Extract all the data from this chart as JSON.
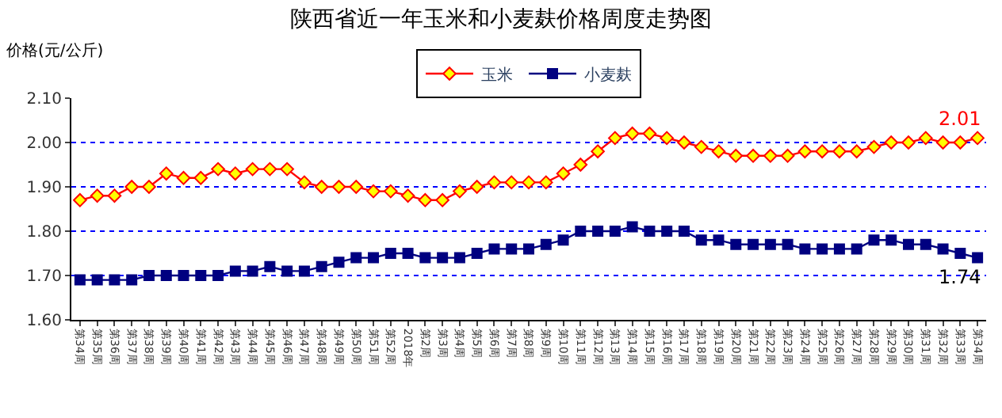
{
  "chart_data": {
    "type": "line",
    "title": "陕西省近一年玉米和小麦麸价格周度走势图",
    "ylabel": "价格(元/公斤)",
    "categories": [
      "第34周",
      "第35周",
      "第36周",
      "第37周",
      "第38周",
      "第39周",
      "第40周",
      "第41周",
      "第42周",
      "第43周",
      "第44周",
      "第45周",
      "第46周",
      "第47周",
      "第48周",
      "第49周",
      "第50周",
      "第51周",
      "第52周",
      "2018年",
      "第2周",
      "第3周",
      "第4周",
      "第5周",
      "第6周",
      "第7周",
      "第8周",
      "第9周",
      "第10周",
      "第11周",
      "第12周",
      "第13周",
      "第14周",
      "第15周",
      "第16周",
      "第17周",
      "第18周",
      "第19周",
      "第20周",
      "第21周",
      "第22周",
      "第23周",
      "第24周",
      "第25周",
      "第26周",
      "第27周",
      "第28周",
      "第29周",
      "第30周",
      "第31周",
      "第32周",
      "第33周",
      "第34周"
    ],
    "series": [
      {
        "name": "玉米",
        "color": "#ff0000",
        "marker": "diamond",
        "value_labels": [
          null,
          null,
          null,
          null,
          null,
          null,
          null,
          null,
          null,
          null,
          null,
          null,
          null,
          null,
          null,
          null,
          null,
          null,
          null,
          null,
          null,
          null,
          null,
          null,
          null,
          null,
          null,
          null,
          null,
          null,
          null,
          null,
          null,
          null,
          null,
          null,
          null,
          null,
          null,
          null,
          null,
          null,
          null,
          null,
          null,
          null,
          null,
          null,
          null,
          null,
          null,
          null,
          "2.01"
        ],
        "values": [
          1.87,
          1.88,
          1.88,
          1.9,
          1.9,
          1.93,
          1.92,
          1.92,
          1.94,
          1.93,
          1.94,
          1.94,
          1.94,
          1.91,
          1.9,
          1.9,
          1.9,
          1.89,
          1.89,
          1.88,
          1.87,
          1.87,
          1.89,
          1.9,
          1.91,
          1.91,
          1.91,
          1.91,
          1.93,
          1.95,
          1.98,
          2.01,
          2.02,
          2.02,
          2.01,
          2.0,
          1.99,
          1.98,
          1.97,
          1.97,
          1.97,
          1.97,
          1.98,
          1.98,
          1.98,
          1.98,
          1.99,
          2.0,
          2.0,
          2.01,
          2.0,
          2.0,
          2.01
        ]
      },
      {
        "name": "小麦麸",
        "color": "#000080",
        "marker": "square",
        "value_labels": [
          null,
          null,
          null,
          null,
          null,
          null,
          null,
          null,
          null,
          null,
          null,
          null,
          null,
          null,
          null,
          null,
          null,
          null,
          null,
          null,
          null,
          null,
          null,
          null,
          null,
          null,
          null,
          null,
          null,
          null,
          null,
          null,
          null,
          null,
          null,
          null,
          null,
          null,
          null,
          null,
          null,
          null,
          null,
          null,
          null,
          null,
          null,
          null,
          null,
          null,
          null,
          null,
          "1.74"
        ],
        "values": [
          1.69,
          1.69,
          1.69,
          1.69,
          1.7,
          1.7,
          1.7,
          1.7,
          1.7,
          1.71,
          1.71,
          1.72,
          1.71,
          1.71,
          1.72,
          1.73,
          1.74,
          1.74,
          1.75,
          1.75,
          1.74,
          1.74,
          1.74,
          1.75,
          1.76,
          1.76,
          1.76,
          1.77,
          1.78,
          1.8,
          1.8,
          1.8,
          1.81,
          1.8,
          1.8,
          1.8,
          1.78,
          1.78,
          1.77,
          1.77,
          1.77,
          1.77,
          1.76,
          1.76,
          1.76,
          1.76,
          1.78,
          1.78,
          1.77,
          1.77,
          1.76,
          1.75,
          1.74
        ]
      }
    ],
    "ylim": [
      1.6,
      2.1
    ],
    "yticks": [
      {
        "value": 1.6,
        "label": "1.60"
      },
      {
        "value": 1.7,
        "label": "1.70"
      },
      {
        "value": 1.8,
        "label": "1.80"
      },
      {
        "value": 1.9,
        "label": "1.90"
      },
      {
        "value": 2.0,
        "label": "2.00"
      },
      {
        "value": 2.1,
        "label": "2.10"
      }
    ],
    "grid": "y",
    "legend": "top",
    "line_style": "solid"
  }
}
